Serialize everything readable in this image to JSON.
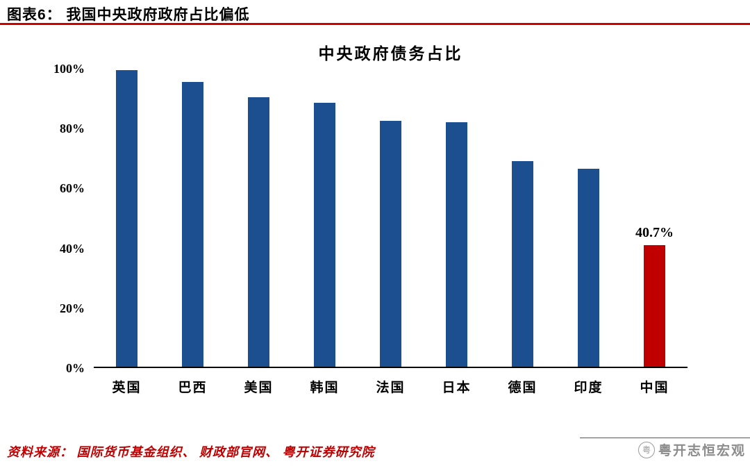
{
  "header": {
    "title": "图表6： 我国中央政府政府占比偏低"
  },
  "chart_data": {
    "type": "bar",
    "title": "中央政府债务占比",
    "categories": [
      "英国",
      "巴西",
      "美国",
      "韩国",
      "法国",
      "日本",
      "德国",
      "印度",
      "中国"
    ],
    "values": [
      99.5,
      95.5,
      90.5,
      88.5,
      82.5,
      82.0,
      69.0,
      66.5,
      40.7
    ],
    "highlight_index": 8,
    "data_label": {
      "index": 8,
      "text": "40.7%"
    },
    "ylim": [
      0,
      100
    ],
    "yticks": [
      0,
      20,
      40,
      60,
      80,
      100
    ],
    "ytick_labels": [
      "0%",
      "20%",
      "40%",
      "60%",
      "80%",
      "100%"
    ],
    "grid": false,
    "legend": "none",
    "bar_color": "#1B4F8F",
    "highlight_color": "#C00000"
  },
  "footer": {
    "source": "资料来源： 国际货币基金组织、 财政部官网、 粤开证券研究院",
    "watermark": "粤开志恒宏观",
    "watermark_logo": "circle-mountain-logo"
  },
  "colors": {
    "accent_red": "#C00000",
    "header_rule_red": "#D00000",
    "bar_blue": "#1B4F8F",
    "watermark_gray": "#8c8c8c"
  }
}
